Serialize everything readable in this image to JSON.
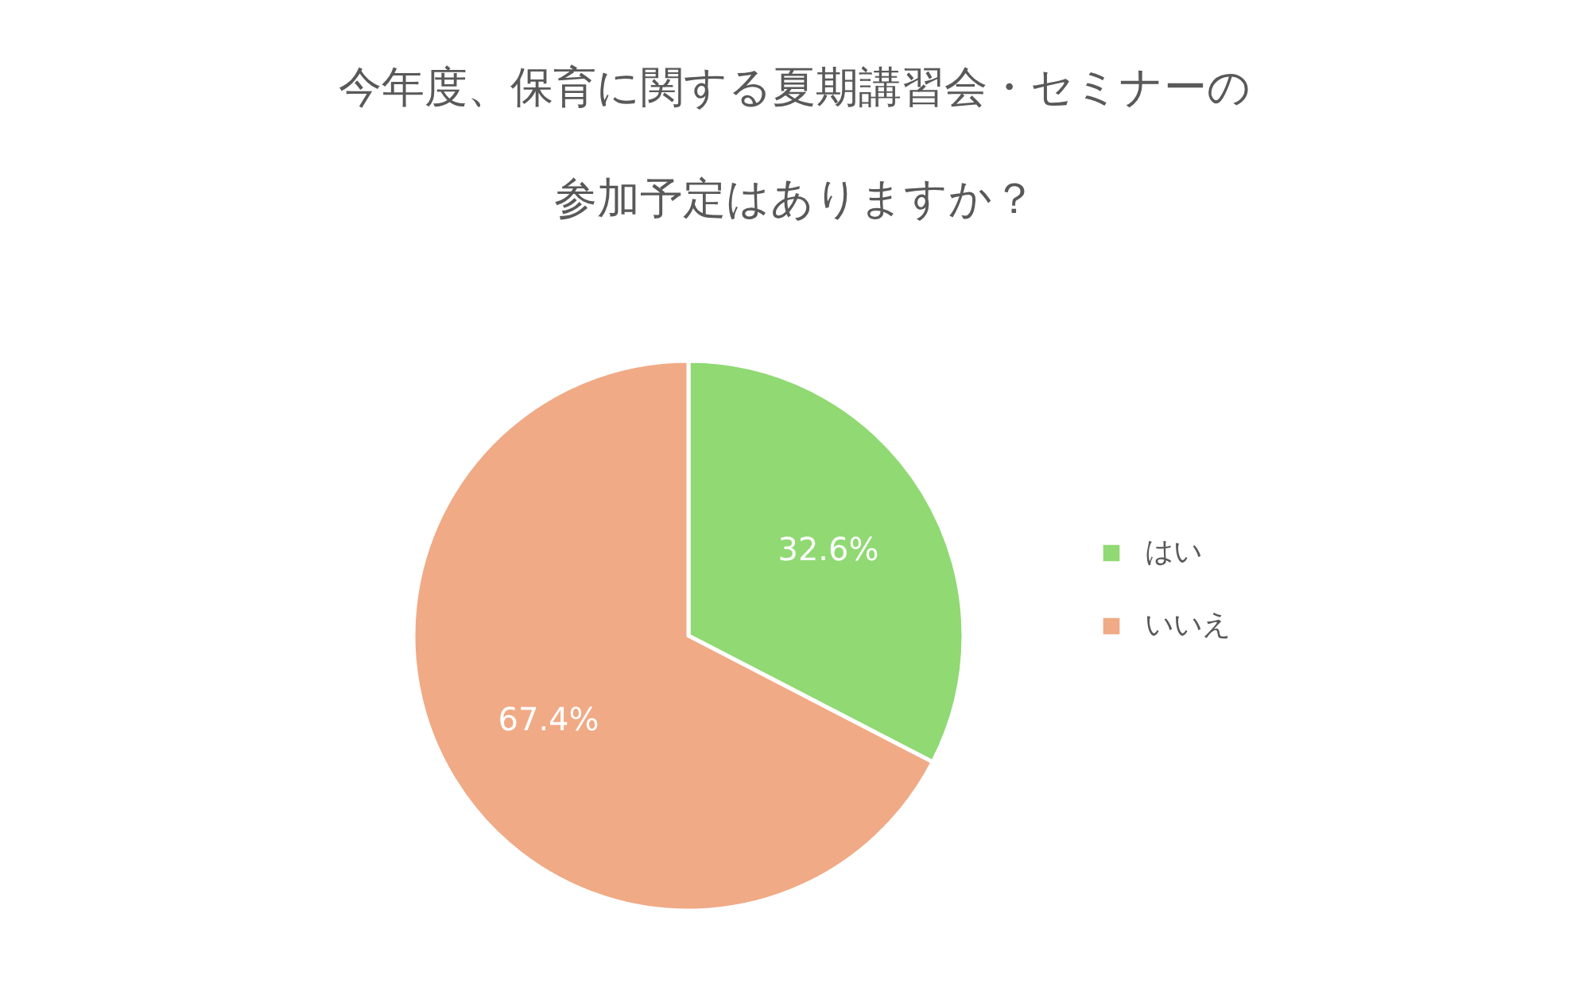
{
  "chart_data": {
    "type": "pie",
    "title": "今年度、保育に関する夏期講習会・セミナーの参加予定はありますか？",
    "value_labels": [
      "32.6%",
      "67.4%"
    ],
    "categories": [
      "はい",
      "いいえ"
    ],
    "values": [
      32.6,
      67.4
    ],
    "colors": [
      "#90d973",
      "#f0aa85"
    ],
    "legend": "right"
  }
}
